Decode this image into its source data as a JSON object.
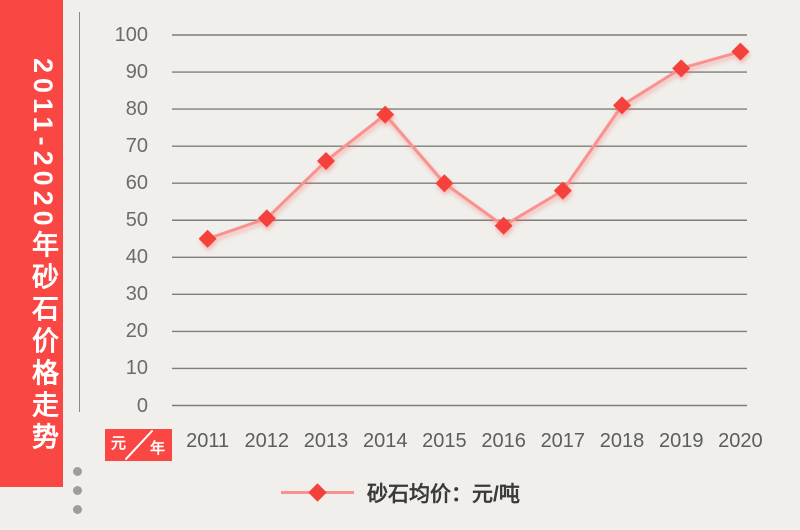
{
  "banner": {
    "title": "2011-2020年砂石价格走势"
  },
  "axis_badge": {
    "y_unit": "元",
    "x_unit": "年"
  },
  "chart_data": {
    "type": "line",
    "title": "2011-2020年砂石价格走势",
    "categories": [
      "2011",
      "2012",
      "2013",
      "2014",
      "2015",
      "2016",
      "2017",
      "2018",
      "2019",
      "2020"
    ],
    "series": [
      {
        "name": "砂石均价",
        "unit": "元/吨",
        "values": [
          45,
          50.5,
          66,
          78.5,
          60,
          48.5,
          58,
          81,
          91,
          95.5
        ]
      }
    ],
    "legend": "砂石均价：元/吨",
    "legend_position": "bottom",
    "xlabel": "年",
    "ylabel": "元",
    "ylim": [
      0,
      100
    ],
    "yticks": [
      100,
      90,
      80,
      70,
      60,
      50,
      40,
      30,
      20,
      10,
      0
    ],
    "grid": "horizontal",
    "marker": "diamond"
  },
  "colors": {
    "background": "#f0efec",
    "banner_red": "#fa4743",
    "marker_red": "#f5413c",
    "line_pink": "#f9918e",
    "gridline": "#7d7d7b",
    "y_label_text": "#6b6b69",
    "x_label_text": "#5d5d5b",
    "legend_text": "#3a3a3a",
    "dots_gray": "#9d9d9b"
  }
}
